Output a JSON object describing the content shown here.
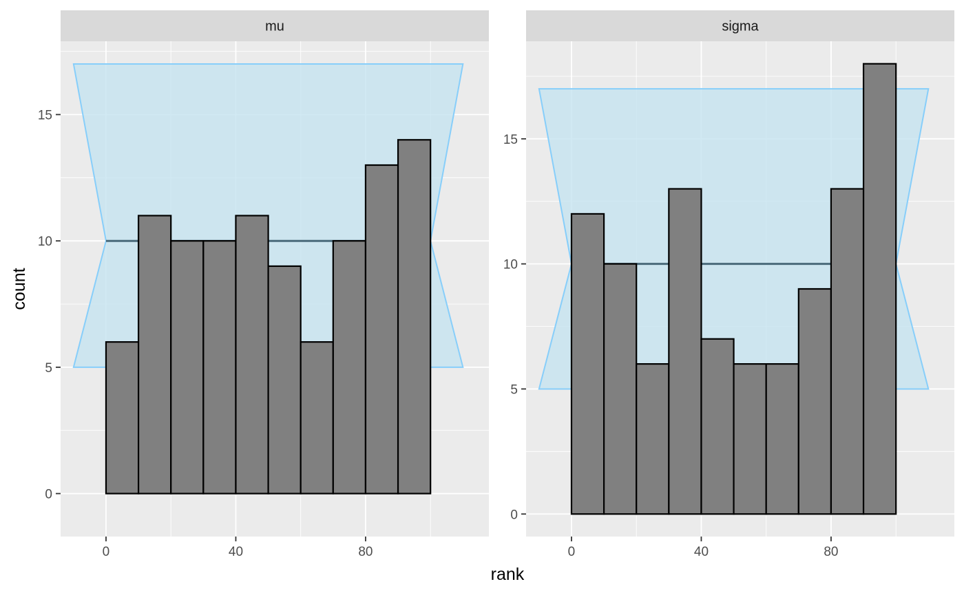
{
  "chart_data": {
    "type": "bar",
    "xlabel": "rank",
    "ylabel": "count",
    "x_ticks": [
      0,
      40,
      80
    ],
    "y_ticks": [
      0,
      5,
      10,
      15
    ],
    "bin_width": 10,
    "bin_starts": [
      0,
      10,
      20,
      30,
      40,
      50,
      60,
      70,
      80,
      90
    ],
    "colors": {
      "panel_bg": "#ebebeb",
      "grid": "#ffffff",
      "strip_bg": "#d9d9d9",
      "bar_fill": "#808080",
      "bar_stroke": "#000000",
      "band_fill": "#c6e3f0",
      "band_stroke": "#87cefa",
      "mean_line": "#4a6a7a"
    },
    "panels": [
      {
        "strip": "mu",
        "counts": [
          6,
          11,
          10,
          10,
          11,
          9,
          6,
          10,
          13,
          14
        ],
        "band": {
          "lower": 5,
          "mean": 10,
          "upper": 17
        },
        "xlim": [
          -14,
          118
        ],
        "ylim": [
          -1.7,
          17.9
        ]
      },
      {
        "strip": "sigma",
        "counts": [
          12,
          10,
          6,
          13,
          7,
          6,
          6,
          9,
          13,
          18
        ],
        "band": {
          "lower": 5,
          "mean": 10,
          "upper": 17
        },
        "xlim": [
          -14,
          118
        ],
        "ylim": [
          -0.9,
          18.9
        ]
      }
    ]
  }
}
